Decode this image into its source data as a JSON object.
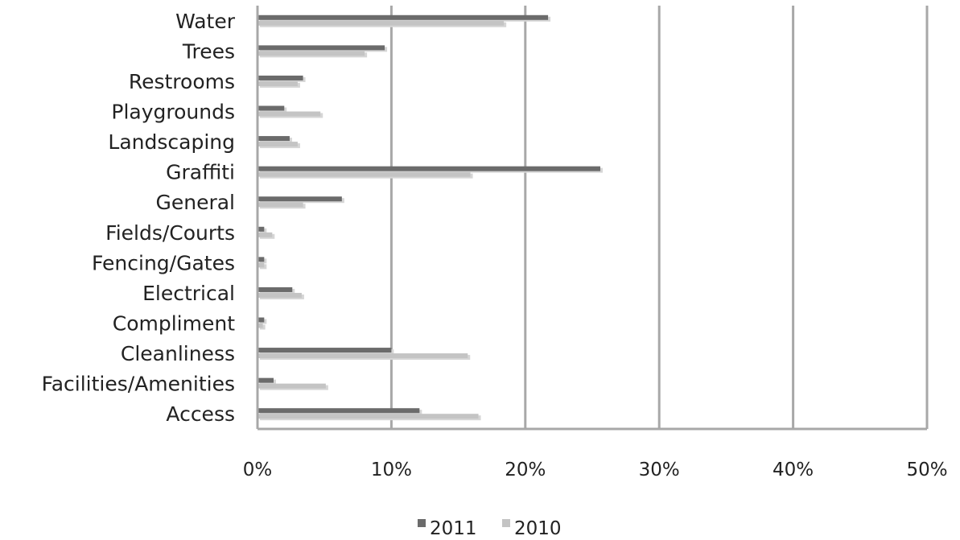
{
  "chart_data": {
    "type": "bar",
    "orientation": "horizontal",
    "categories": [
      "Water",
      "Trees",
      "Restrooms",
      "Playgrounds",
      "Landscaping",
      "Graffiti",
      "General",
      "Fields/Courts",
      "Fencing/Gates",
      "Electrical",
      "Compliment",
      "Cleanliness",
      "Facilities/Amenities",
      "Access"
    ],
    "series": [
      {
        "name": "2011",
        "color": "#6b6b6b",
        "values": [
          21.7,
          9.5,
          3.4,
          2.0,
          2.4,
          25.6,
          6.3,
          0.5,
          0.5,
          2.6,
          0.5,
          10.0,
          1.2,
          12.1
        ]
      },
      {
        "name": "2010",
        "color": "#c4c4c4",
        "values": [
          18.4,
          8.0,
          3.0,
          4.7,
          3.0,
          15.9,
          3.4,
          1.1,
          0.5,
          3.3,
          0.4,
          15.7,
          5.1,
          16.5
        ]
      }
    ],
    "xlim": [
      0,
      50
    ],
    "x_ticks": [
      "0%",
      "10%",
      "20%",
      "30%",
      "40%",
      "50%"
    ],
    "grid": "vertical",
    "legend_position": "bottom"
  }
}
